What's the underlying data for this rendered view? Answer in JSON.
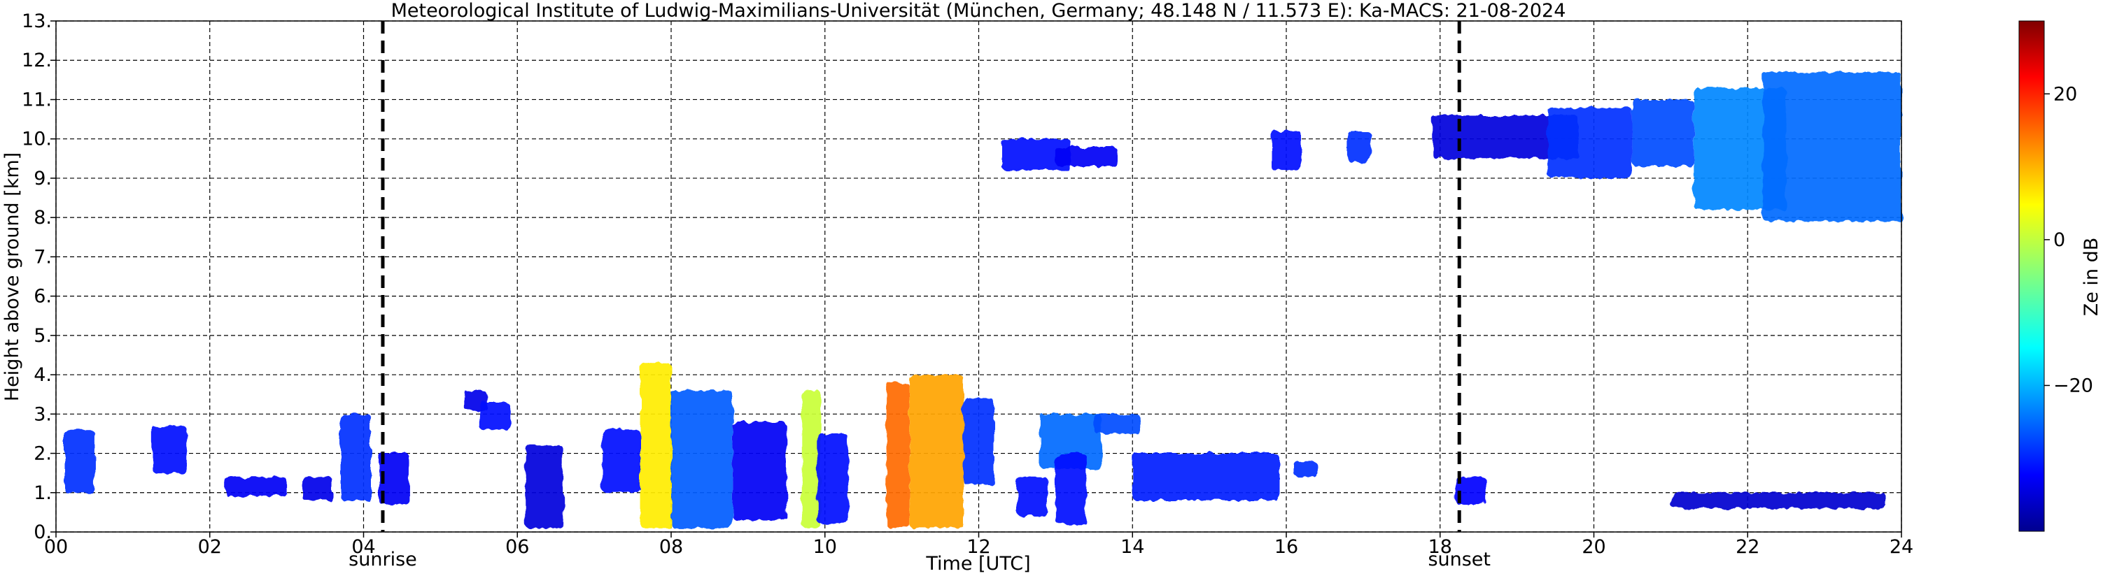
{
  "chart_data": {
    "type": "heatmap",
    "title": "Meteorological Institute of Ludwig-Maximilians-Universität (München, Germany; 48.148 N / 11.573 E):    Ka-MACS: 21-08-2024",
    "xlabel": "Time [UTC]",
    "ylabel": "Height above ground [km]",
    "xlim": [
      0,
      24
    ],
    "ylim": [
      0,
      13
    ],
    "x_ticks": [
      "00",
      "02",
      "04",
      "06",
      "08",
      "10",
      "12",
      "14",
      "16",
      "18",
      "20",
      "22",
      "24"
    ],
    "y_ticks": [
      "0.",
      "1.",
      "2.",
      "3.",
      "4.",
      "5.",
      "6.",
      "7.",
      "8.",
      "9.",
      "10.",
      "11.",
      "12.",
      "13."
    ],
    "grid": true,
    "colorbar": {
      "label": "Ze in dB",
      "range": [
        -40,
        30
      ],
      "ticks": [
        "20",
        "0",
        "−20"
      ],
      "colormap": "jet",
      "colors": [
        "#00008f",
        "#0000ff",
        "#0080ff",
        "#00ffff",
        "#80ff80",
        "#ffff00",
        "#ff8000",
        "#ff0000",
        "#800000"
      ]
    },
    "markers": [
      {
        "label": "sunrise",
        "x": 4.25
      },
      {
        "label": "sunset",
        "x": 18.25
      }
    ],
    "echo_regions": [
      {
        "x": [
          0.1,
          0.5
        ],
        "y": [
          1.0,
          2.6
        ],
        "ze": -28
      },
      {
        "x": [
          1.25,
          1.7
        ],
        "y": [
          1.5,
          2.7
        ],
        "ze": -30
      },
      {
        "x": [
          2.2,
          3.0
        ],
        "y": [
          0.9,
          1.4
        ],
        "ze": -32
      },
      {
        "x": [
          3.2,
          3.6
        ],
        "y": [
          0.8,
          1.4
        ],
        "ze": -33
      },
      {
        "x": [
          3.7,
          4.1
        ],
        "y": [
          0.8,
          3.0
        ],
        "ze": -28
      },
      {
        "x": [
          4.2,
          4.6
        ],
        "y": [
          0.7,
          2.0
        ],
        "ze": -32
      },
      {
        "x": [
          5.3,
          5.6
        ],
        "y": [
          3.1,
          3.6
        ],
        "ze": -33
      },
      {
        "x": [
          5.5,
          5.9
        ],
        "y": [
          2.6,
          3.3
        ],
        "ze": -30
      },
      {
        "x": [
          6.1,
          6.6
        ],
        "y": [
          0.1,
          2.2
        ],
        "ze": -34
      },
      {
        "x": [
          7.1,
          7.6
        ],
        "y": [
          1.0,
          2.6
        ],
        "ze": -30
      },
      {
        "x": [
          7.6,
          8.0
        ],
        "y": [
          0.1,
          4.3
        ],
        "ze": 5
      },
      {
        "x": [
          8.0,
          8.8
        ],
        "y": [
          0.1,
          3.6
        ],
        "ze": -25
      },
      {
        "x": [
          8.8,
          9.5
        ],
        "y": [
          0.3,
          2.8
        ],
        "ze": -32
      },
      {
        "x": [
          9.7,
          9.95
        ],
        "y": [
          0.1,
          3.6
        ],
        "ze": 0
      },
      {
        "x": [
          9.9,
          10.3
        ],
        "y": [
          0.2,
          2.5
        ],
        "ze": -30
      },
      {
        "x": [
          10.8,
          11.1
        ],
        "y": [
          0.1,
          3.8
        ],
        "ze": 14
      },
      {
        "x": [
          11.1,
          11.8
        ],
        "y": [
          0.1,
          4.0
        ],
        "ze": 10
      },
      {
        "x": [
          11.8,
          12.2
        ],
        "y": [
          1.2,
          3.4
        ],
        "ze": -28
      },
      {
        "x": [
          12.5,
          12.9
        ],
        "y": [
          0.4,
          1.4
        ],
        "ze": -30
      },
      {
        "x": [
          12.8,
          13.6
        ],
        "y": [
          1.6,
          3.0
        ],
        "ze": -24
      },
      {
        "x": [
          13.0,
          13.4
        ],
        "y": [
          0.2,
          2.0
        ],
        "ze": -30
      },
      {
        "x": [
          13.5,
          14.1
        ],
        "y": [
          2.5,
          3.0
        ],
        "ze": -26
      },
      {
        "x": [
          14.0,
          15.9
        ],
        "y": [
          0.8,
          2.0
        ],
        "ze": -29
      },
      {
        "x": [
          16.1,
          16.4
        ],
        "y": [
          1.4,
          1.8
        ],
        "ze": -28
      },
      {
        "x": [
          18.2,
          18.6
        ],
        "y": [
          0.7,
          1.4
        ],
        "ze": -31
      },
      {
        "x": [
          12.3,
          13.2
        ],
        "y": [
          9.2,
          10.0
        ],
        "ze": -30
      },
      {
        "x": [
          13.0,
          13.8
        ],
        "y": [
          9.3,
          9.8
        ],
        "ze": -32
      },
      {
        "x": [
          15.8,
          16.2
        ],
        "y": [
          9.2,
          10.2
        ],
        "ze": -30
      },
      {
        "x": [
          16.8,
          17.1
        ],
        "y": [
          9.4,
          10.2
        ],
        "ze": -28
      },
      {
        "x": [
          17.9,
          19.8
        ],
        "y": [
          9.5,
          10.6
        ],
        "ze": -34
      },
      {
        "x": [
          19.4,
          20.5
        ],
        "y": [
          9.0,
          10.8
        ],
        "ze": -28
      },
      {
        "x": [
          20.5,
          21.3
        ],
        "y": [
          9.3,
          11.0
        ],
        "ze": -26
      },
      {
        "x": [
          21.3,
          22.5
        ],
        "y": [
          8.2,
          11.3
        ],
        "ze": -22
      },
      {
        "x": [
          22.2,
          24.0
        ],
        "y": [
          7.9,
          11.7
        ],
        "ze": -24
      },
      {
        "x": [
          21.0,
          23.8
        ],
        "y": [
          0.6,
          1.0
        ],
        "ze": -35
      }
    ]
  }
}
